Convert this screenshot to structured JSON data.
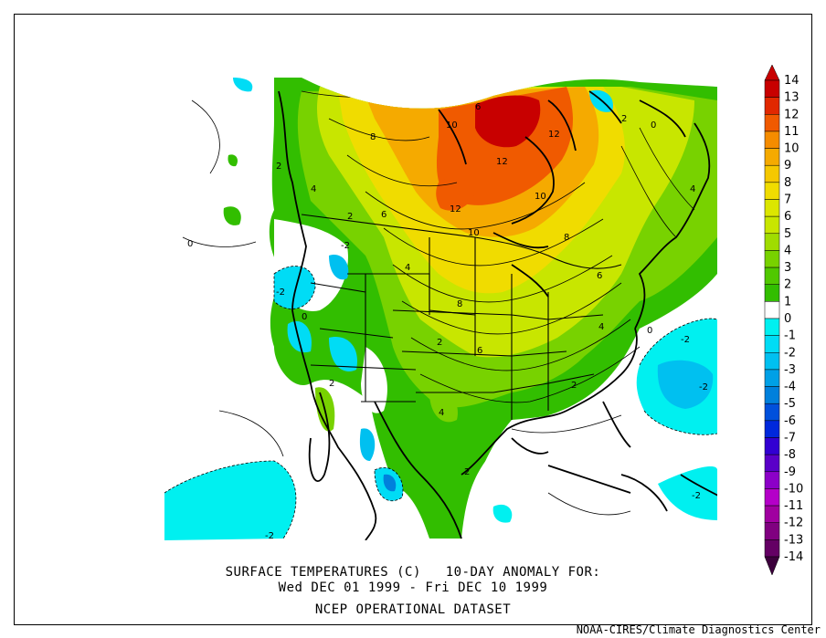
{
  "title_line1": "SURFACE TEMPERATURES (C)   10-DAY ANOMALY FOR:",
  "title_line2": "Wed DEC 01 1999 - Fri DEC 10 1999",
  "title_line3": "NCEP OPERATIONAL DATASET",
  "credit": "NOAA-CIRES/Climate Diagnostics Center",
  "colorbar": {
    "levels": [
      "14",
      "13",
      "12",
      "11",
      "10",
      "9",
      "8",
      "7",
      "6",
      "5",
      "4",
      "3",
      "2",
      "1",
      "0",
      "-1",
      "-2",
      "-3",
      "-4",
      "-5",
      "-6",
      "-7",
      "-8",
      "-9",
      "-10",
      "-11",
      "-12",
      "-13",
      "-14"
    ],
    "colors": [
      "#c80000",
      "#e12800",
      "#f05a00",
      "#f58c00",
      "#f5aa00",
      "#f5c800",
      "#f0dc00",
      "#dce600",
      "#c8e600",
      "#a0dc00",
      "#78d200",
      "#50c800",
      "#32be00",
      "#ffffff",
      "#00f0f0",
      "#00dcf5",
      "#00c0f0",
      "#00a0e6",
      "#0080dc",
      "#0050dc",
      "#0028dc",
      "#3200d2",
      "#5a00c8",
      "#8c00c8",
      "#b400c8",
      "#a000a0",
      "#800080",
      "#640064"
    ]
  },
  "contour_labels": [
    {
      "text": "10"
    },
    {
      "text": "12"
    },
    {
      "text": "8"
    },
    {
      "text": "10"
    },
    {
      "text": "12"
    },
    {
      "text": "10"
    },
    {
      "text": "8"
    },
    {
      "text": "12"
    },
    {
      "text": "2"
    },
    {
      "text": "4"
    },
    {
      "text": "6"
    },
    {
      "text": "8"
    },
    {
      "text": "2"
    },
    {
      "text": "4"
    },
    {
      "text": "6"
    },
    {
      "text": "4"
    },
    {
      "text": "2"
    },
    {
      "text": "4"
    },
    {
      "text": "6"
    },
    {
      "text": "2"
    },
    {
      "text": "-2"
    },
    {
      "text": "0"
    },
    {
      "text": "-2"
    },
    {
      "text": "0"
    },
    {
      "text": "2"
    },
    {
      "text": "-2"
    },
    {
      "text": "-2"
    },
    {
      "text": "-2"
    },
    {
      "text": "0"
    },
    {
      "text": "-2"
    },
    {
      "text": "4"
    },
    {
      "text": "2"
    },
    {
      "text": "6"
    },
    {
      "text": "0"
    },
    {
      "text": "2"
    }
  ]
}
